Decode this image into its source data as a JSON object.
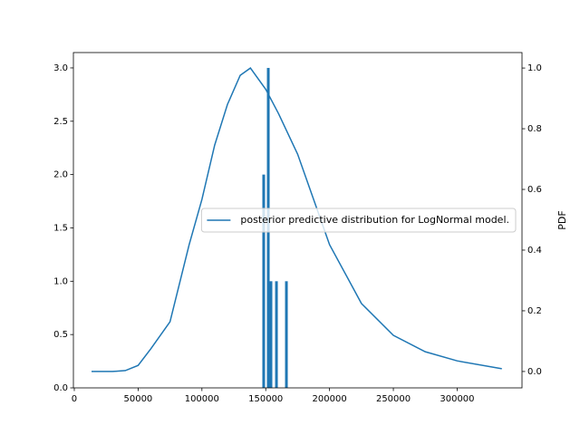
{
  "chart_data": {
    "type": "bar",
    "xlim": [
      -700,
      350800
    ],
    "xticks": [
      0,
      50000,
      100000,
      150000,
      200000,
      250000,
      300000
    ],
    "ylim": [
      0,
      3.144
    ],
    "yticks": [
      {
        "value": 0,
        "label": "0.0"
      },
      {
        "value": 0.5,
        "label": "0.5"
      },
      {
        "value": 1,
        "label": "1.0"
      },
      {
        "value": 1.5,
        "label": "1.5"
      },
      {
        "value": 2,
        "label": "2.0"
      },
      {
        "value": 2.5,
        "label": "2.5"
      },
      {
        "value": 3,
        "label": "3.0"
      }
    ],
    "y2lim": [
      -0.054,
      1.051
    ],
    "y2ticks": [
      {
        "value": 0,
        "label": "0.0"
      },
      {
        "value": 0.2,
        "label": "0.2"
      },
      {
        "value": 0.4,
        "label": "0.4"
      },
      {
        "value": 0.6,
        "label": "0.6"
      },
      {
        "value": 0.8,
        "label": "0.8"
      },
      {
        "value": 1,
        "label": "1.0"
      }
    ],
    "y2label": "PDF",
    "legend": "center right",
    "series": [
      {
        "type": "bar",
        "color": "#1f77b4",
        "x": [
          148400,
          152000,
          154100,
          158400,
          166200
        ],
        "values": [
          2,
          3,
          1,
          1,
          1
        ]
      },
      {
        "type": "line",
        "name": "posterior predictive distribution for LogNormal model.",
        "color": "#1f77b4",
        "axis": "y2",
        "x": [
          13500,
          30000,
          40000,
          50000,
          60000,
          75000,
          90000,
          100000,
          110000,
          120000,
          130000,
          138000,
          150000,
          160000,
          175000,
          187500,
          200000,
          225000,
          250000,
          275000,
          300000,
          335000
        ],
        "values": [
          0.0,
          0.0,
          0.003,
          0.02,
          0.075,
          0.164,
          0.418,
          0.567,
          0.746,
          0.88,
          0.976,
          1.0,
          0.93,
          0.85,
          0.716,
          0.567,
          0.418,
          0.224,
          0.119,
          0.065,
          0.035,
          0.009
        ]
      }
    ]
  }
}
